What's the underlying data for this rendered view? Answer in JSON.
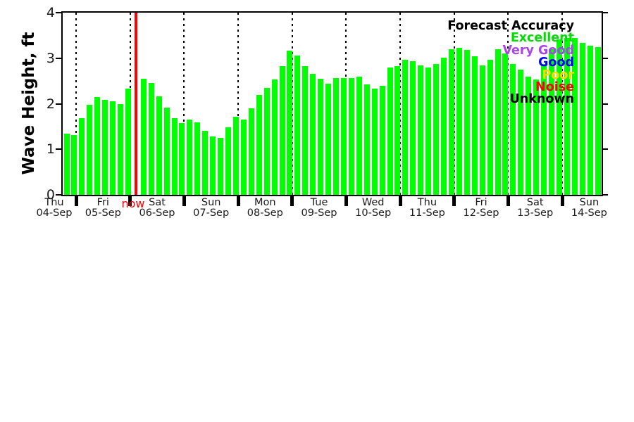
{
  "chart_data": {
    "type": "bar",
    "title": "",
    "ylabel": "Wave Height, ft",
    "ylim": [
      0,
      4
    ],
    "ytick_labels": [
      "0",
      "1",
      "2",
      "3",
      "4"
    ],
    "bar_color": "#00FF00",
    "grid": "vertical dotted lines at day boundaries",
    "days": [
      {
        "weekday": "Thu",
        "date": "04-Sep"
      },
      {
        "weekday": "Fri",
        "date": "05-Sep"
      },
      {
        "weekday": "Sat",
        "date": "06-Sep"
      },
      {
        "weekday": "Sun",
        "date": "07-Sep"
      },
      {
        "weekday": "Mon",
        "date": "08-Sep"
      },
      {
        "weekday": "Tue",
        "date": "09-Sep"
      },
      {
        "weekday": "Wed",
        "date": "10-Sep"
      },
      {
        "weekday": "Thu",
        "date": "11-Sep"
      },
      {
        "weekday": "Fri",
        "date": "12-Sep"
      },
      {
        "weekday": "Sat",
        "date": "13-Sep"
      },
      {
        "weekday": "Sun",
        "date": "14-Sep"
      }
    ],
    "bars_per_day": [
      2,
      7,
      7,
      7,
      7,
      7,
      7,
      7,
      7,
      7,
      5
    ],
    "values_ft": [
      1.34,
      1.31,
      1.69,
      1.98,
      2.14,
      2.09,
      2.06,
      2.0,
      2.34,
      null,
      2.55,
      2.45,
      2.16,
      1.91,
      1.68,
      1.58,
      1.65,
      1.59,
      1.41,
      1.29,
      1.25,
      1.49,
      1.71,
      1.65,
      1.9,
      2.2,
      2.35,
      2.53,
      2.83,
      3.16,
      3.06,
      2.83,
      2.66,
      2.55,
      2.44,
      2.56,
      2.56,
      2.56,
      2.6,
      2.43,
      2.33,
      2.4,
      2.8,
      2.83,
      2.97,
      2.93,
      2.85,
      2.79,
      2.88,
      3.02,
      3.2,
      3.23,
      3.18,
      3.05,
      2.84,
      2.96,
      3.2,
      3.11,
      2.88,
      2.75,
      2.6,
      2.53,
      2.88,
      3.19,
      3.42,
      3.45,
      3.45,
      3.34,
      3.28,
      3.24
    ],
    "now_marker": {
      "label": "now",
      "color": "#FF0000",
      "slot_index": 9
    },
    "legend": {
      "title": "Forecast Accuracy",
      "position": "top-right",
      "items": [
        {
          "label": "Excellent",
          "color": "#00DD00"
        },
        {
          "label": "Very Good",
          "color": "#AA44EE"
        },
        {
          "label": "Good",
          "color": "#0000FF"
        },
        {
          "label": "Poor",
          "color": "#FFD700"
        },
        {
          "label": "Noise",
          "color": "#FF0000"
        },
        {
          "label": "Unknown",
          "color": "#000000"
        }
      ]
    }
  }
}
